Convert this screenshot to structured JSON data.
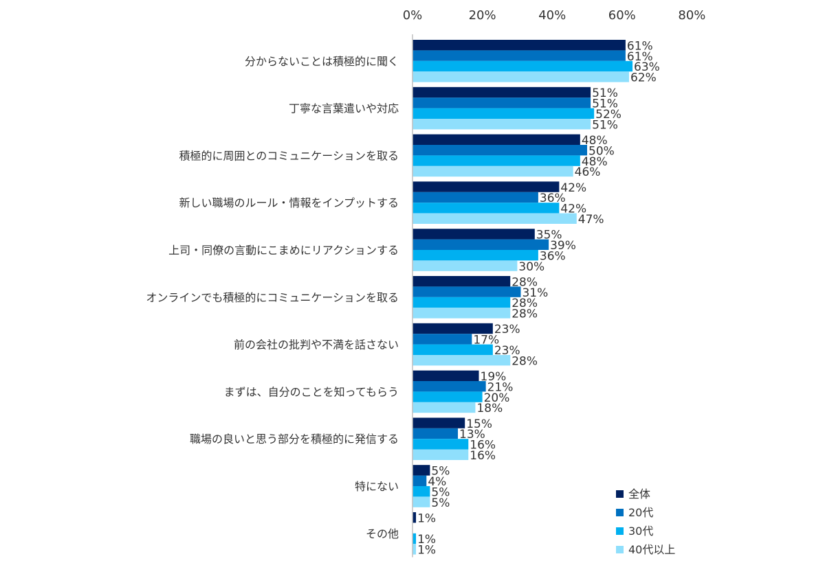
{
  "chart_data": {
    "type": "bar",
    "orientation": "horizontal",
    "title": "",
    "xlabel": "",
    "ylabel": "",
    "xlim": [
      0,
      80
    ],
    "x_ticks": [
      "0%",
      "20%",
      "40%",
      "60%",
      "80%"
    ],
    "x_tick_values": [
      0,
      20,
      40,
      60,
      80
    ],
    "grid": false,
    "legend_position": "bottom-right",
    "value_suffix": "%",
    "categories": [
      "分からないことは積極的に聞く",
      "丁寧な言葉遣いや対応",
      "積極的に周囲とのコミュニケーションを取る",
      "新しい職場のルール・情報をインプットする",
      "上司・同僚の言動にこまめにリアクションする",
      "オンラインでも積極的にコミュニケーションを取る",
      "前の会社の批判や不満を話さない",
      "まずは、自分のことを知ってもらう",
      "職場の良いと思う部分を積極的に発信する",
      "特にない",
      "その他"
    ],
    "series": [
      {
        "name": "全体",
        "color": "#002060",
        "values": [
          61,
          51,
          48,
          42,
          35,
          28,
          23,
          19,
          15,
          5,
          1
        ]
      },
      {
        "name": "20代",
        "color": "#0070C0",
        "values": [
          61,
          51,
          50,
          36,
          39,
          31,
          17,
          21,
          13,
          4,
          0
        ]
      },
      {
        "name": "30代",
        "color": "#00B0F0",
        "values": [
          63,
          52,
          48,
          42,
          36,
          28,
          23,
          20,
          16,
          5,
          1
        ]
      },
      {
        "name": "40代以上",
        "color": "#8FDFFC",
        "values": [
          62,
          51,
          46,
          47,
          30,
          28,
          28,
          18,
          16,
          5,
          1
        ]
      }
    ]
  }
}
